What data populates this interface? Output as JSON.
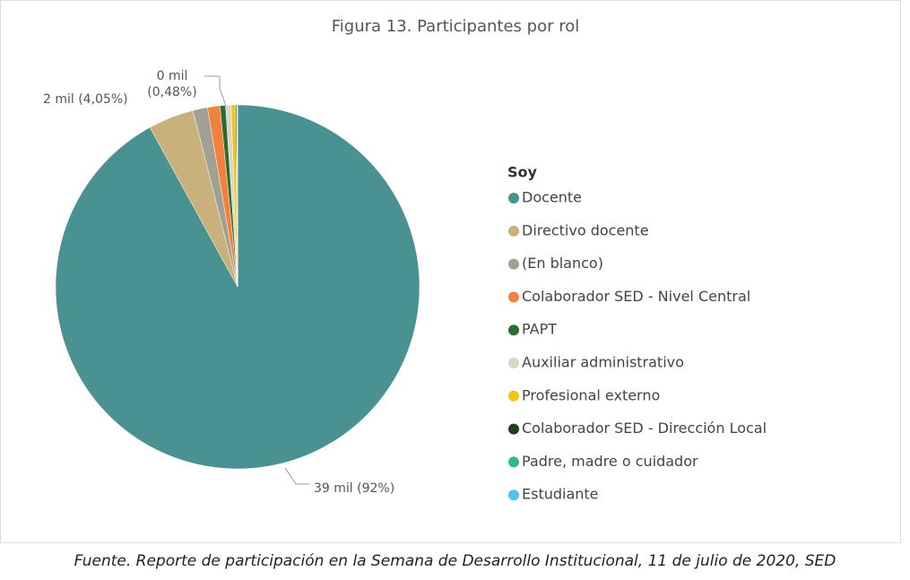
{
  "chart_data": {
    "type": "pie",
    "title": "Figura 13. Participantes por rol",
    "legend_title": "Soy",
    "legend": "right",
    "categories": [
      "Docente",
      "Directivo docente",
      "(En blanco)",
      "Colaborador SED - Nivel Central",
      "PAPT",
      "Auxiliar administrativo",
      "Profesional externo",
      "Colaborador SED - Dirección Local",
      "Padre, madre o cuidador",
      "Estudiante"
    ],
    "values": [
      92,
      4.05,
      1.3,
      1.1,
      0.5,
      0.48,
      0.4,
      0.1,
      0.04,
      0.03
    ],
    "value_labels": [
      "39 mil (92%)",
      "2 mil (4,05%)",
      null,
      null,
      null,
      "0 mil (0,48%)",
      null,
      null,
      null,
      null
    ],
    "colors": [
      "#4a9192",
      "#c9b17b",
      "#a29f93",
      "#f2813c",
      "#2e6b31",
      "#d8d7c5",
      "#f2c30f",
      "#1e3e1f",
      "#30b890",
      "#4fc2f0"
    ],
    "caption": "Fuente. Reporte de participación en la Semana de Desarrollo Institucional, 11 de julio de 2020, SED"
  }
}
